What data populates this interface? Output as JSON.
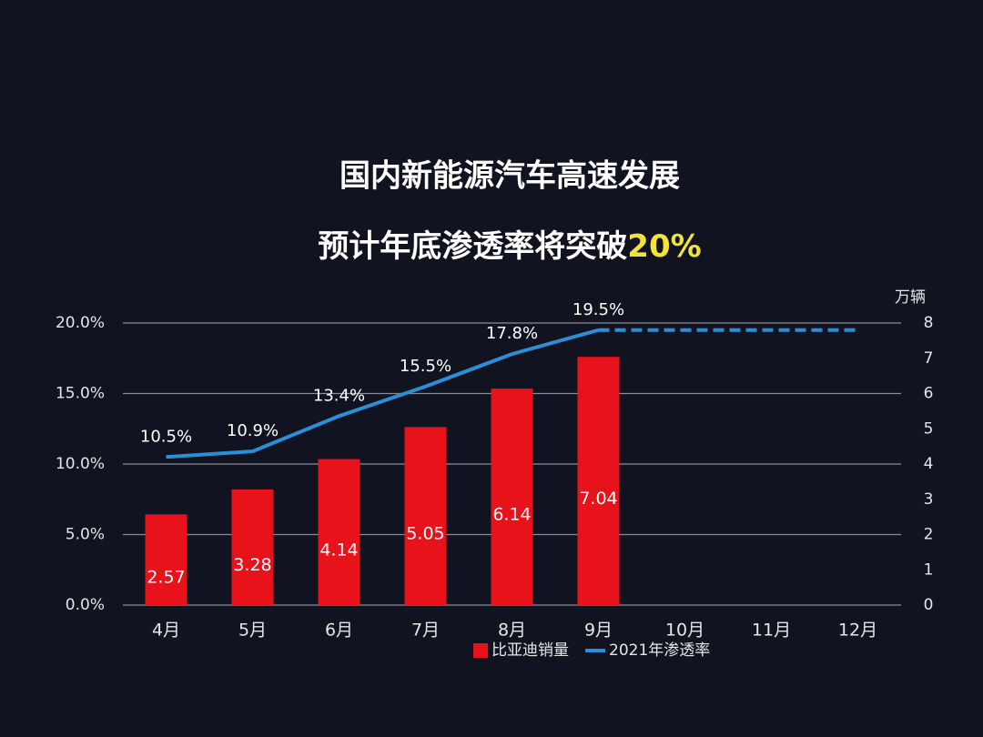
{
  "chart_data": {
    "type": "bar",
    "title": "国内新能源汽车高速发展",
    "subtitle": "预计年底渗透率将突破",
    "subtitle_highlight": "20%",
    "y2_label": "万辆",
    "categories": [
      "4月",
      "5月",
      "6月",
      "7月",
      "8月",
      "9月",
      "10月",
      "11月",
      "12月"
    ],
    "series": [
      {
        "name": "比亚迪销量",
        "type": "bar",
        "axis": "y2",
        "color": "#e8121b",
        "values": [
          2.57,
          3.28,
          4.14,
          5.05,
          6.14,
          7.04,
          null,
          null,
          null
        ]
      },
      {
        "name": "2021年渗透率",
        "type": "line",
        "color": "#2b8fd8",
        "values": [
          10.5,
          10.9,
          13.4,
          15.5,
          17.8,
          19.5,
          null,
          null,
          null
        ],
        "value_labels": [
          "10.5%",
          "10.9%",
          "13.4%",
          "15.5%",
          "17.8%",
          "19.5%",
          null,
          null,
          null
        ],
        "projected_values": [
          null,
          null,
          null,
          null,
          null,
          19.5,
          19.5,
          19.5,
          19.5
        ]
      }
    ],
    "ylim": [
      0,
      20
    ],
    "yticks": [
      {
        "value": 0,
        "label": "0.0%"
      },
      {
        "value": 5,
        "label": "5.0%"
      },
      {
        "value": 10,
        "label": "10.0%"
      },
      {
        "value": 15,
        "label": "15.0%"
      },
      {
        "value": 20,
        "label": "20.0%"
      }
    ],
    "y2lim": [
      0,
      8
    ],
    "y2ticks": [
      0,
      1,
      2,
      3,
      4,
      5,
      6,
      7,
      8
    ],
    "grid": true,
    "legend": "bottom"
  }
}
